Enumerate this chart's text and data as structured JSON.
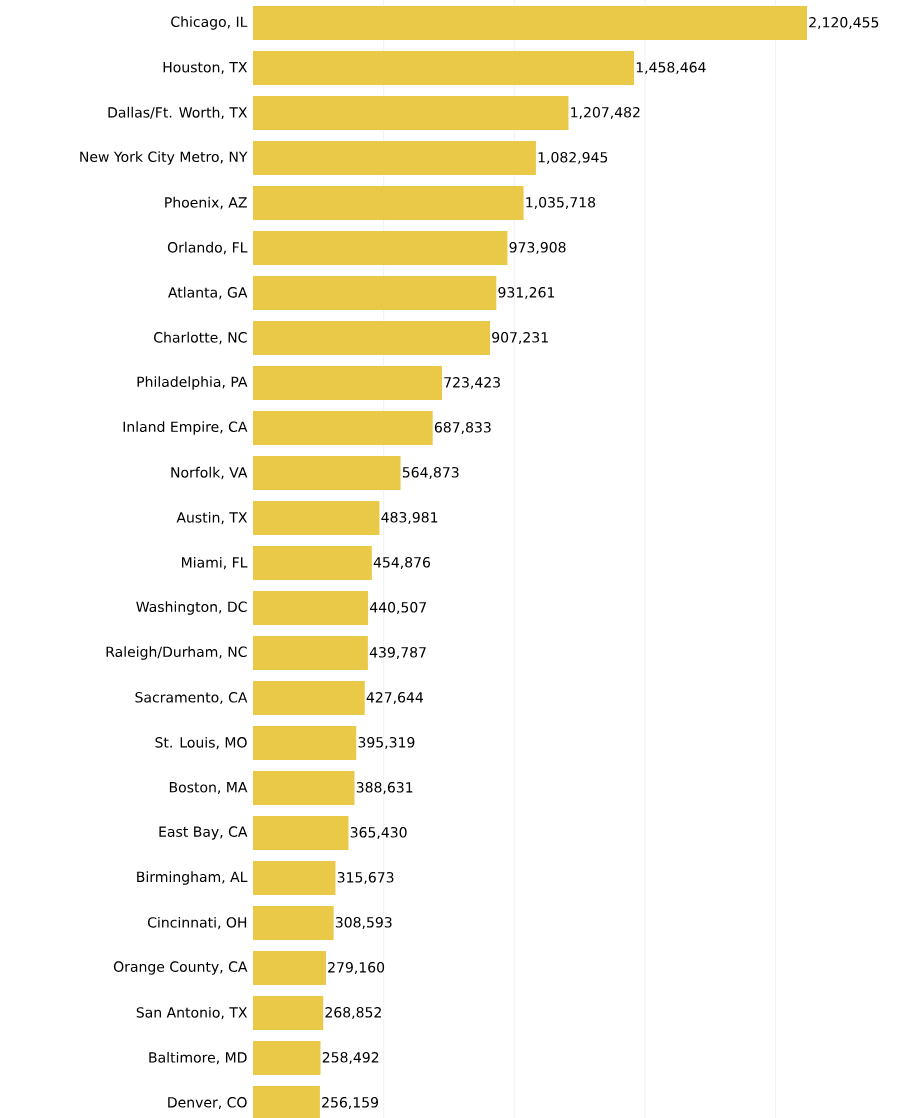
{
  "chart_data": {
    "type": "bar",
    "orientation": "horizontal",
    "color": "#ebc948",
    "categories": [
      "Chicago, IL",
      "Houston, TX",
      "Dallas/Ft. Worth, TX",
      "New York City Metro, NY",
      "Phoenix, AZ",
      "Orlando, FL",
      "Atlanta, GA",
      "Charlotte, NC",
      "Philadelphia, PA",
      "Inland Empire, CA",
      "Norfolk, VA",
      "Austin, TX",
      "Miami, FL",
      "Washington, DC",
      "Raleigh/Durham, NC",
      "Sacramento, CA",
      "St. Louis, MO",
      "Boston, MA",
      "East Bay, CA",
      "Birmingham, AL",
      "Cincinnati, OH",
      "Orange County, CA",
      "San Antonio, TX",
      "Baltimore, MD",
      "Denver, CO"
    ],
    "values": [
      2120455,
      1458464,
      1207482,
      1082945,
      1035718,
      973908,
      931261,
      907231,
      723423,
      687833,
      564873,
      483981,
      454876,
      440507,
      439787,
      427644,
      395319,
      388631,
      365430,
      315673,
      308593,
      279160,
      268852,
      258492,
      256159
    ],
    "value_labels": [
      "2,120,455",
      "1,458,464",
      "1,207,482",
      "1,082,945",
      "1,035,718",
      "973,908",
      "931,261",
      "907,231",
      "723,423",
      "687,833",
      "564,873",
      "483,981",
      "454,876",
      "440,507",
      "439,787",
      "427,644",
      "395,319",
      "388,631",
      "365,430",
      "315,673",
      "308,593",
      "279,160",
      "268,852",
      "258,492",
      "256,159"
    ],
    "xticks": [
      {
        "value": 500000,
        "label": null
      },
      {
        "value": 1000000,
        "label": null
      },
      {
        "value": 1500000,
        "label": null
      },
      {
        "value": 2000000,
        "label": null
      }
    ],
    "grid": "x",
    "tick_labels": "y"
  }
}
